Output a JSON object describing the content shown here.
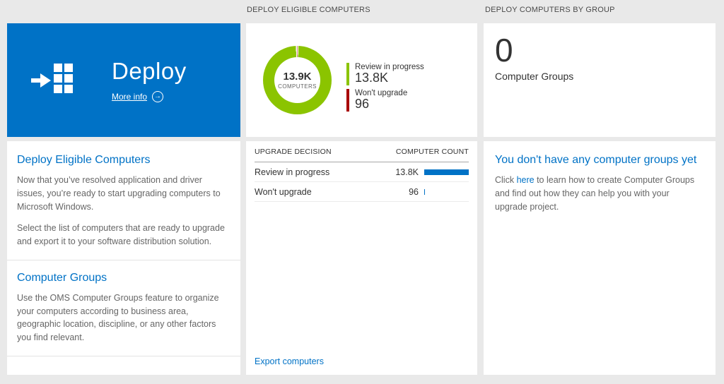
{
  "page": {
    "background": "#e9e9e9"
  },
  "headers": {
    "middle": "DEPLOY ELIGIBLE COMPUTERS",
    "right": "DEPLOY COMPUTERS BY GROUP"
  },
  "left": {
    "tile": {
      "title": "Deploy",
      "more_info_label": "More info",
      "more_info_arrow": "→",
      "background": "#0072c6"
    },
    "sections": [
      {
        "heading": "Deploy Eligible Computers",
        "paragraphs": [
          "Now that you’ve resolved application and driver issues, you’re ready to start upgrading computers to Microsoft Windows.",
          "Select the list of computers that are ready to upgrade and export it to your software distribution solution."
        ]
      },
      {
        "heading": "Computer Groups",
        "paragraphs": [
          "Use the OMS Computer Groups feature to organize your computers according to business area, geographic location, discipline, or any other factors you find relevant."
        ]
      }
    ]
  },
  "middle": {
    "donut": {
      "center_value": "13.9K",
      "center_label": "COMPUTERS",
      "segments": [
        {
          "name": "Review in progress",
          "value": 13800,
          "color": "#8bc400"
        },
        {
          "name": "Won't upgrade",
          "value": 96,
          "color": "#a80000"
        }
      ]
    },
    "legend": [
      {
        "label": "Review in progress",
        "value": "13.8K",
        "color": "#8bc400"
      },
      {
        "label": "Won't upgrade",
        "value": "96",
        "color": "#a80000"
      }
    ],
    "table": {
      "col1": "UPGRADE DECISION",
      "col2": "COMPUTER COUNT",
      "bar_color": "#0072c6",
      "rows": [
        {
          "label": "Review in progress",
          "value": "13.8K",
          "bar_pct": 100
        },
        {
          "label": "Won't upgrade",
          "value": "96",
          "bar_pct": 2
        }
      ]
    },
    "export_label": "Export computers"
  },
  "right": {
    "count": "0",
    "count_label": "Computer Groups",
    "empty": {
      "heading": "You don't have any computer groups yet",
      "before_link": "Click ",
      "link": "here",
      "after_link": " to learn how to create Computer Groups and find out how they can help you with your upgrade project."
    }
  },
  "chart_data": {
    "type": "pie",
    "title": "DEPLOY ELIGIBLE COMPUTERS",
    "center_value": "13.9K",
    "center_label": "COMPUTERS",
    "slices": [
      {
        "label": "Review in progress",
        "value": 13800,
        "color": "#8bc400"
      },
      {
        "label": "Won't upgrade",
        "value": 96,
        "color": "#a80000"
      }
    ],
    "legend_position": "right"
  }
}
